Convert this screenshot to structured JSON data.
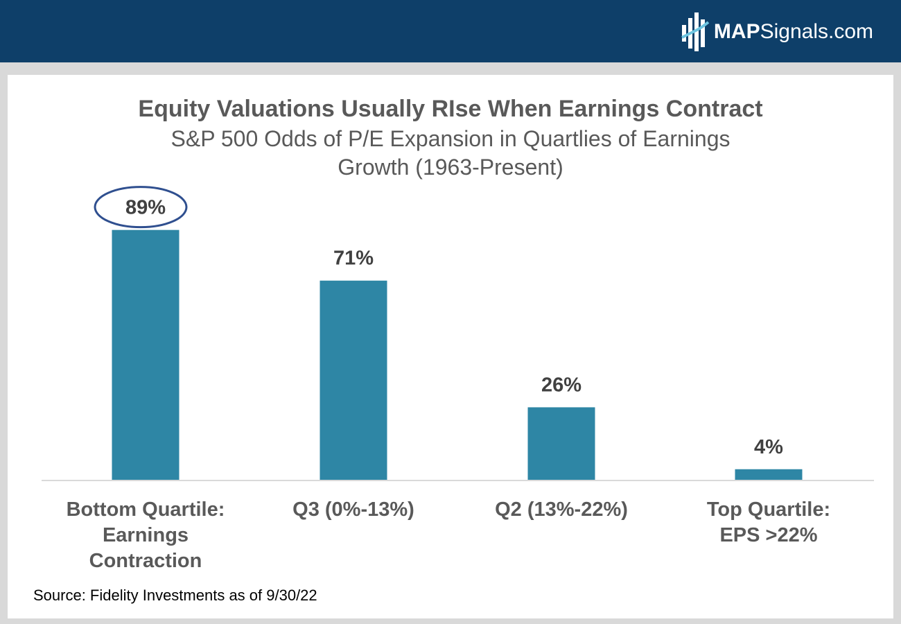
{
  "header": {
    "brand_bold": "MAP",
    "brand_rest": "Signals.com",
    "logo_icon": "mapsignals-logo-icon",
    "bg_color": "#0e3f69"
  },
  "chart_data": {
    "type": "bar",
    "title": "Equity Valuations Usually RIse When Earnings Contract",
    "subtitle_line1": "S&P 500 Odds of P/E Expansion in Quartlies of Earnings",
    "subtitle_line2": "Growth (1963-Present)",
    "categories": [
      [
        "Bottom Quartile:",
        "Earnings",
        "Contraction"
      ],
      [
        "Q3 (0%-13%)"
      ],
      [
        "Q2 (13%-22%)"
      ],
      [
        "Top Quartile:",
        "EPS >22%"
      ]
    ],
    "values": [
      89,
      71,
      26,
      4
    ],
    "data_labels": [
      "89%",
      "71%",
      "26%",
      "4%"
    ],
    "highlighted_index": 0,
    "ylim": [
      0,
      100
    ],
    "grid": false,
    "bar_color": "#2e86a5",
    "highlight_color": "#2f4f8f",
    "source": "Source: Fidelity Investments as of 9/30/22"
  }
}
